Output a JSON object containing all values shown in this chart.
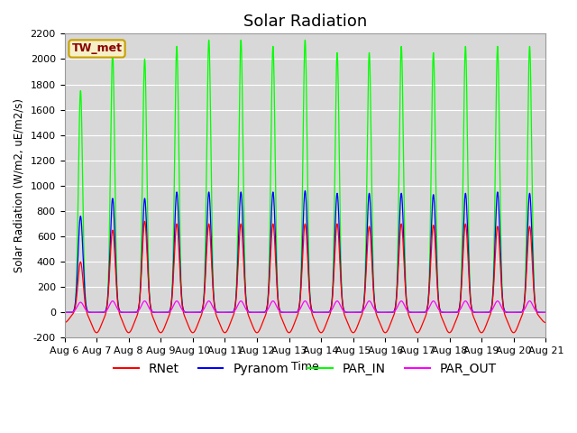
{
  "title": "Solar Radiation",
  "ylabel": "Solar Radiation (W/m2, uE/m2/s)",
  "xlabel": "Time",
  "ylim": [
    -200,
    2200
  ],
  "xlim": [
    0,
    15
  ],
  "background_color": "#d8d8d8",
  "grid_color": "#ffffff",
  "station_label": "TW_met",
  "station_label_color": "#8b0000",
  "station_label_bg": "#f5f0c8",
  "colors": {
    "RNet": "#ff0000",
    "Pyranom": "#0000ff",
    "PAR_IN": "#00ff00",
    "PAR_OUT": "#ff00ff"
  },
  "xtick_labels": [
    "Aug 6",
    "Aug 7",
    "Aug 8",
    "Aug 9",
    "Aug 10",
    "Aug 11",
    "Aug 12",
    "Aug 13",
    "Aug 14",
    "Aug 15",
    "Aug 16",
    "Aug 17",
    "Aug 18",
    "Aug 19",
    "Aug 20",
    "Aug 21"
  ],
  "xtick_positions": [
    0,
    1,
    2,
    3,
    4,
    5,
    6,
    7,
    8,
    9,
    10,
    11,
    12,
    13,
    14,
    15
  ],
  "ytick_positions": [
    -200,
    0,
    200,
    400,
    600,
    800,
    1000,
    1200,
    1400,
    1600,
    1800,
    2000,
    2200
  ],
  "num_days": 15,
  "par_in_peaks": [
    1750,
    2050,
    2000,
    2100,
    2150,
    2150,
    2100,
    2150,
    2050,
    2050,
    2100,
    2050,
    2100,
    2100,
    2100
  ],
  "pyranom_peaks": [
    760,
    900,
    900,
    950,
    950,
    950,
    950,
    960,
    940,
    940,
    940,
    930,
    940,
    950,
    940
  ],
  "rnet_peaks": [
    400,
    650,
    720,
    700,
    700,
    700,
    700,
    700,
    700,
    680,
    700,
    690,
    700,
    680,
    680
  ],
  "par_out_peaks": [
    80,
    90,
    90,
    90,
    90,
    90,
    90,
    90,
    90,
    90,
    90,
    90,
    90,
    90,
    90
  ],
  "rnet_night": -80,
  "title_fontsize": 13,
  "legend_fontsize": 10,
  "tick_fontsize": 8
}
